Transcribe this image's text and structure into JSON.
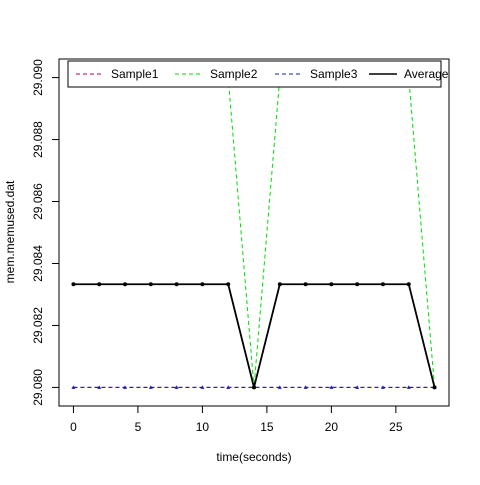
{
  "chart_data": {
    "type": "line",
    "xlabel": "time(seconds)",
    "ylabel": "mem.memused.dat",
    "xlim": [
      -1.12,
      29.12
    ],
    "ylim": [
      29.0794,
      29.0906
    ],
    "x_ticks": [
      0,
      5,
      10,
      15,
      20,
      25
    ],
    "y_ticks": [
      29.08,
      29.082,
      29.084,
      29.086,
      29.088,
      29.09
    ],
    "y_tick_labels": [
      "29.080",
      "29.082",
      "29.084",
      "29.086",
      "29.088",
      "29.090"
    ],
    "legend_position": "top",
    "grid": false,
    "x": [
      0,
      2,
      4,
      6,
      8,
      10,
      12,
      14,
      16,
      18,
      20,
      22,
      24,
      26,
      28
    ],
    "series": [
      {
        "name": "Sample1",
        "color": "#b5005b",
        "dash": "dashed",
        "values": [
          29.08,
          29.08,
          29.08,
          29.08,
          29.08,
          29.08,
          29.08,
          29.08,
          29.08,
          29.08,
          29.08,
          29.08,
          29.08,
          29.08,
          29.08
        ]
      },
      {
        "name": "Sample2",
        "color": "#00dd00",
        "dash": "dashed",
        "values": [
          29.09,
          29.09,
          29.09,
          29.09,
          29.09,
          29.09,
          29.09,
          29.08,
          29.09,
          29.09,
          29.09,
          29.09,
          29.09,
          29.09,
          29.08
        ]
      },
      {
        "name": "Sample3",
        "color": "#1b1bb8",
        "dash": "dashed",
        "values": [
          29.08,
          29.08,
          29.08,
          29.08,
          29.08,
          29.08,
          29.08,
          29.08,
          29.08,
          29.08,
          29.08,
          29.08,
          29.08,
          29.08,
          29.08
        ]
      },
      {
        "name": "Average",
        "color": "#000000",
        "dash": "solid",
        "values": [
          29.08333,
          29.08333,
          29.08333,
          29.08333,
          29.08333,
          29.08333,
          29.08333,
          29.08,
          29.08333,
          29.08333,
          29.08333,
          29.08333,
          29.08333,
          29.08333,
          29.08
        ]
      }
    ]
  }
}
